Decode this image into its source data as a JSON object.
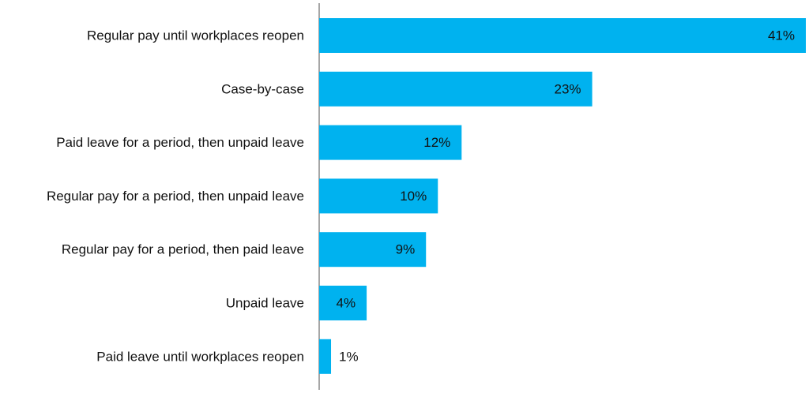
{
  "chart_data": {
    "type": "bar",
    "orientation": "horizontal",
    "categories": [
      "Regular pay until workplaces reopen",
      "Case-by-case",
      "Paid leave for a period, then unpaid leave",
      "Regular pay for a period, then unpaid leave",
      "Regular pay for a period, then paid leave",
      "Unpaid leave",
      "Paid leave until workplaces reopen"
    ],
    "values": [
      41,
      23,
      12,
      10,
      9,
      4,
      1
    ],
    "value_labels": [
      "41%",
      "23%",
      "12%",
      "10%",
      "9%",
      "4%",
      "1%"
    ],
    "xlim": [
      0,
      41
    ],
    "grid": false,
    "legend": "none",
    "bar_color": "#00b2ef",
    "axis_color": "#888888",
    "label_color": "#111111"
  }
}
